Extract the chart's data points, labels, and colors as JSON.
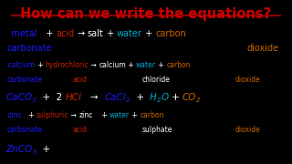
{
  "bg_color": "#000000",
  "title": "How can we write the equations?",
  "title_color": "#cc0000",
  "title_fontsize": 10.5,
  "white": "#ffffff",
  "red": "#cc2200",
  "blue": "#1a1aff",
  "cyan": "#00aacc",
  "orange": "#cc6600",
  "line1": [
    {
      "text": "  metal",
      "color": "#1a1aff",
      "size": 7.0
    },
    {
      "text": "   + ",
      "color": "#ffffff",
      "size": 7.0
    },
    {
      "text": "acid",
      "color": "#cc2200",
      "size": 7.0
    },
    {
      "text": " → ",
      "color": "#ffffff",
      "size": 7.0
    },
    {
      "text": "salt",
      "color": "#ffffff",
      "size": 7.0
    },
    {
      "text": " + ",
      "color": "#ffffff",
      "size": 7.0
    },
    {
      "text": "water",
      "color": "#00aacc",
      "size": 7.0
    },
    {
      "text": " + ",
      "color": "#ffffff",
      "size": 7.0
    },
    {
      "text": "carbon",
      "color": "#cc6600",
      "size": 7.0
    }
  ],
  "sec1_line1": [
    {
      "text": " calcium",
      "color": "#1a1aff",
      "size": 5.5
    },
    {
      "text": " + ",
      "color": "#ffffff",
      "size": 5.5
    },
    {
      "text": "hydrochloric",
      "color": "#cc2200",
      "size": 5.5
    },
    {
      "text": " → ",
      "color": "#ffffff",
      "size": 5.5
    },
    {
      "text": "calcium",
      "color": "#ffffff",
      "size": 5.5
    },
    {
      "text": " + ",
      "color": "#ffffff",
      "size": 5.5
    },
    {
      "text": "water",
      "color": "#00aacc",
      "size": 5.5
    },
    {
      "text": " + ",
      "color": "#ffffff",
      "size": 5.5
    },
    {
      "text": "carbon",
      "color": "#cc6600",
      "size": 5.5
    }
  ],
  "sec2_line1": [
    {
      "text": " zinc",
      "color": "#1a1aff",
      "size": 5.5
    },
    {
      "text": "   + ",
      "color": "#ffffff",
      "size": 5.5
    },
    {
      "text": "sulphuric",
      "color": "#cc2200",
      "size": 5.5
    },
    {
      "text": " → ",
      "color": "#ffffff",
      "size": 5.5
    },
    {
      "text": "zinc",
      "color": "#ffffff",
      "size": 5.5
    },
    {
      "text": "    + ",
      "color": "#ffffff",
      "size": 5.5
    },
    {
      "text": "water",
      "color": "#00aacc",
      "size": 5.5
    },
    {
      "text": " + ",
      "color": "#ffffff",
      "size": 5.5
    },
    {
      "text": "carbon",
      "color": "#cc6600",
      "size": 5.5
    }
  ],
  "eq1_parts": [
    {
      "text": "CaCO",
      "color": "#1a1aff",
      "size": 7.5,
      "sub": false,
      "italic": true
    },
    {
      "text": "3",
      "color": "#1a1aff",
      "size": 5.0,
      "sub": true,
      "italic": true
    },
    {
      "text": "  +  2 ",
      "color": "#ffffff",
      "size": 7.5,
      "sub": false,
      "italic": false
    },
    {
      "text": "HCl",
      "color": "#cc2200",
      "size": 7.5,
      "sub": false,
      "italic": true
    },
    {
      "text": "   →  ",
      "color": "#ffffff",
      "size": 7.5,
      "sub": false,
      "italic": false
    },
    {
      "text": "CaCl",
      "color": "#1a1aff",
      "size": 7.5,
      "sub": false,
      "italic": true
    },
    {
      "text": "2",
      "color": "#1a1aff",
      "size": 5.0,
      "sub": true,
      "italic": true
    },
    {
      "text": "  +  ",
      "color": "#ffffff",
      "size": 7.5,
      "sub": false,
      "italic": false
    },
    {
      "text": "H",
      "color": "#00aacc",
      "size": 7.5,
      "sub": false,
      "italic": true
    },
    {
      "text": "2",
      "color": "#00aacc",
      "size": 5.0,
      "sub": true,
      "italic": true
    },
    {
      "text": "O",
      "color": "#00aacc",
      "size": 7.5,
      "sub": false,
      "italic": true
    },
    {
      "text": " + ",
      "color": "#ffffff",
      "size": 7.5,
      "sub": false,
      "italic": false
    },
    {
      "text": "CO",
      "color": "#cc6600",
      "size": 7.5,
      "sub": false,
      "italic": true
    },
    {
      "text": "2",
      "color": "#cc6600",
      "size": 5.0,
      "sub": true,
      "italic": true
    }
  ],
  "eq2_parts": [
    {
      "text": "ZnCO",
      "color": "#1a1aff",
      "size": 7.5,
      "sub": false,
      "italic": true
    },
    {
      "text": "3",
      "color": "#1a1aff",
      "size": 5.0,
      "sub": true,
      "italic": true
    },
    {
      "text": "  +",
      "color": "#ffffff",
      "size": 7.5,
      "sub": false,
      "italic": false
    }
  ]
}
